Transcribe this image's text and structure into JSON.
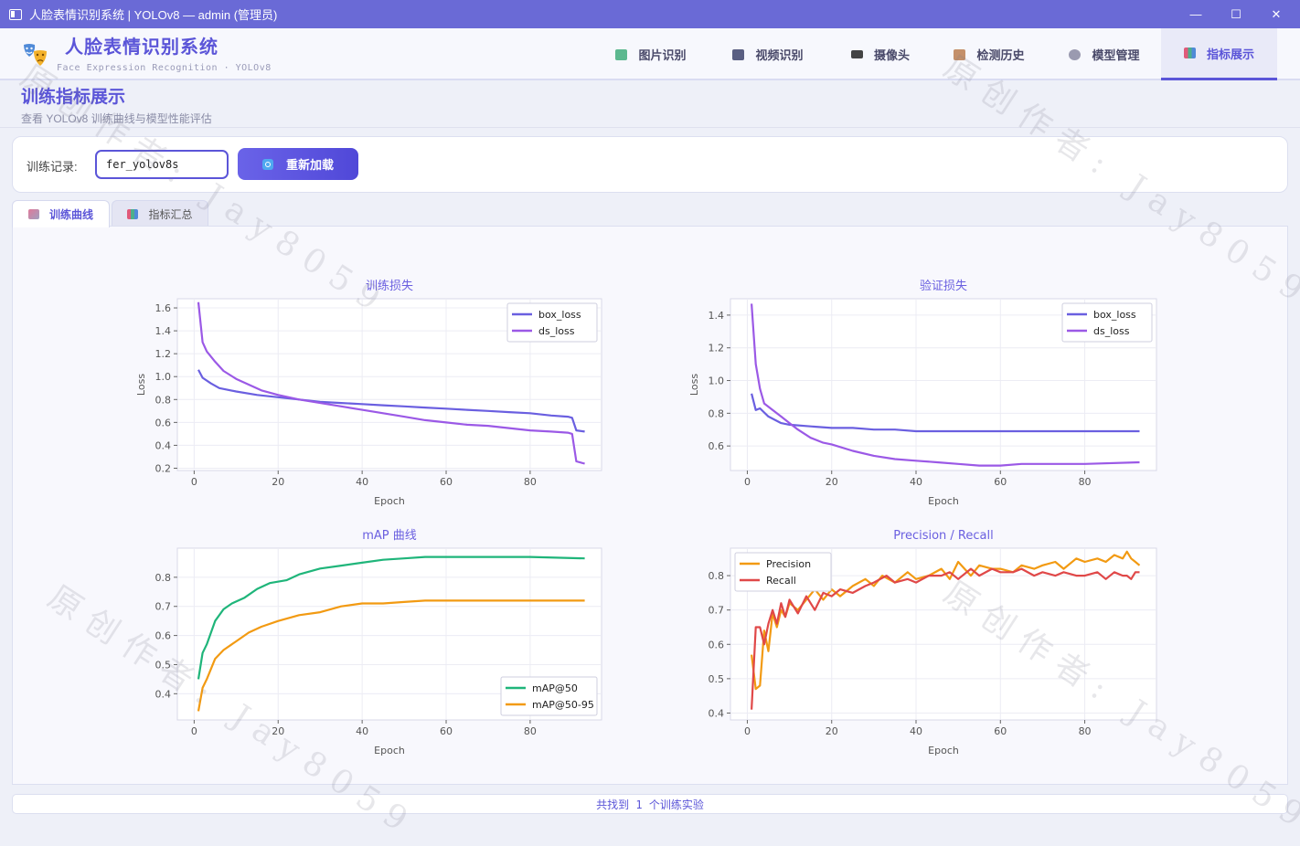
{
  "window": {
    "title": "人脸表情识别系统 | YOLOv8 — admin (管理员)",
    "minimize": "—",
    "maximize": "☐",
    "close": "✕"
  },
  "header": {
    "app_name": "人脸表情识别系统",
    "app_subtitle": "Face Expression Recognition · YOLOv8",
    "nav": [
      {
        "label": "图片识别",
        "icon": "image-icon",
        "color": "#4caf8c"
      },
      {
        "label": "视频识别",
        "icon": "film-icon",
        "color": "#555a7a"
      },
      {
        "label": "摄像头",
        "icon": "camera-icon",
        "color": "#444"
      },
      {
        "label": "检测历史",
        "icon": "history-scroll-icon",
        "color": "#b07a5a"
      },
      {
        "label": "模型管理",
        "icon": "gear-icon",
        "color": "#8a8aa0"
      },
      {
        "label": "指标展示",
        "icon": "bar-chart-icon",
        "color": "#d05a7a"
      }
    ],
    "active_nav": "指标展示"
  },
  "page": {
    "title": "训练指标展示",
    "subtitle": "查看 YOLOv8 训练曲线与模型性能评估"
  },
  "record": {
    "label": "训练记录:",
    "value": "fer_yolov8s",
    "reload_label": "重新加载"
  },
  "tabs": [
    {
      "label": "训练曲线",
      "active": true
    },
    {
      "label": "指标汇总",
      "active": false
    }
  ],
  "status": "共找到 1 个训练实验",
  "watermark": "原创作者: Jay8059",
  "chart_data": [
    {
      "type": "line",
      "title": "训练损失",
      "xlabel": "Epoch",
      "ylabel": "Loss",
      "xlim": [
        -4,
        97
      ],
      "ylim": [
        0.18,
        1.68
      ],
      "xticks": [
        0,
        20,
        40,
        60,
        80
      ],
      "yticks": [
        0.2,
        0.4,
        0.6,
        0.8,
        1.0,
        1.2,
        1.4,
        1.6
      ],
      "legend": "top-right",
      "series": [
        {
          "name": "box_loss",
          "color": "#6a5fe0",
          "points": [
            [
              1,
              1.06
            ],
            [
              2,
              0.99
            ],
            [
              4,
              0.94
            ],
            [
              6,
              0.9
            ],
            [
              10,
              0.87
            ],
            [
              15,
              0.84
            ],
            [
              20,
              0.82
            ],
            [
              25,
              0.8
            ],
            [
              30,
              0.78
            ],
            [
              35,
              0.77
            ],
            [
              40,
              0.76
            ],
            [
              45,
              0.75
            ],
            [
              50,
              0.74
            ],
            [
              55,
              0.73
            ],
            [
              60,
              0.72
            ],
            [
              65,
              0.71
            ],
            [
              70,
              0.7
            ],
            [
              75,
              0.69
            ],
            [
              80,
              0.68
            ],
            [
              85,
              0.66
            ],
            [
              89,
              0.65
            ],
            [
              90,
              0.64
            ],
            [
              91,
              0.53
            ],
            [
              93,
              0.52
            ]
          ]
        },
        {
          "name": "ds_loss",
          "color": "#9b59e6",
          "points": [
            [
              1,
              1.65
            ],
            [
              2,
              1.3
            ],
            [
              3,
              1.22
            ],
            [
              5,
              1.13
            ],
            [
              7,
              1.05
            ],
            [
              10,
              0.98
            ],
            [
              13,
              0.93
            ],
            [
              16,
              0.88
            ],
            [
              20,
              0.84
            ],
            [
              25,
              0.8
            ],
            [
              30,
              0.77
            ],
            [
              35,
              0.74
            ],
            [
              40,
              0.71
            ],
            [
              45,
              0.68
            ],
            [
              50,
              0.65
            ],
            [
              55,
              0.62
            ],
            [
              60,
              0.6
            ],
            [
              65,
              0.58
            ],
            [
              70,
              0.57
            ],
            [
              75,
              0.55
            ],
            [
              80,
              0.53
            ],
            [
              85,
              0.52
            ],
            [
              89,
              0.51
            ],
            [
              90,
              0.5
            ],
            [
              91,
              0.26
            ],
            [
              93,
              0.24
            ]
          ]
        }
      ]
    },
    {
      "type": "line",
      "title": "验证损失",
      "xlabel": "Epoch",
      "ylabel": "Loss",
      "xlim": [
        -4,
        97
      ],
      "ylim": [
        0.45,
        1.5
      ],
      "xticks": [
        0,
        20,
        40,
        60,
        80
      ],
      "yticks": [
        0.6,
        0.8,
        1.0,
        1.2,
        1.4
      ],
      "legend": "top-right",
      "series": [
        {
          "name": "box_loss",
          "color": "#6a5fe0",
          "points": [
            [
              1,
              0.92
            ],
            [
              2,
              0.82
            ],
            [
              3,
              0.83
            ],
            [
              5,
              0.78
            ],
            [
              8,
              0.74
            ],
            [
              10,
              0.73
            ],
            [
              15,
              0.72
            ],
            [
              20,
              0.71
            ],
            [
              25,
              0.71
            ],
            [
              30,
              0.7
            ],
            [
              35,
              0.7
            ],
            [
              40,
              0.69
            ],
            [
              50,
              0.69
            ],
            [
              60,
              0.69
            ],
            [
              70,
              0.69
            ],
            [
              80,
              0.69
            ],
            [
              93,
              0.69
            ]
          ]
        },
        {
          "name": "ds_loss",
          "color": "#9b59e6",
          "points": [
            [
              1,
              1.47
            ],
            [
              2,
              1.1
            ],
            [
              3,
              0.95
            ],
            [
              4,
              0.86
            ],
            [
              6,
              0.82
            ],
            [
              8,
              0.78
            ],
            [
              10,
              0.74
            ],
            [
              12,
              0.7
            ],
            [
              15,
              0.65
            ],
            [
              18,
              0.62
            ],
            [
              20,
              0.61
            ],
            [
              25,
              0.57
            ],
            [
              30,
              0.54
            ],
            [
              35,
              0.52
            ],
            [
              40,
              0.51
            ],
            [
              45,
              0.5
            ],
            [
              50,
              0.49
            ],
            [
              55,
              0.48
            ],
            [
              60,
              0.48
            ],
            [
              65,
              0.49
            ],
            [
              70,
              0.49
            ],
            [
              80,
              0.49
            ],
            [
              93,
              0.5
            ]
          ]
        }
      ]
    },
    {
      "type": "line",
      "title": "mAP 曲线",
      "xlabel": "Epoch",
      "ylabel": "",
      "xlim": [
        -4,
        97
      ],
      "ylim": [
        0.31,
        0.9
      ],
      "xticks": [
        0,
        20,
        40,
        60,
        80
      ],
      "yticks": [
        0.4,
        0.5,
        0.6,
        0.7,
        0.8
      ],
      "legend": "bottom-right",
      "series": [
        {
          "name": "mAP@50",
          "color": "#1fb57a",
          "points": [
            [
              1,
              0.45
            ],
            [
              2,
              0.54
            ],
            [
              3,
              0.57
            ],
            [
              5,
              0.65
            ],
            [
              7,
              0.69
            ],
            [
              9,
              0.71
            ],
            [
              12,
              0.73
            ],
            [
              15,
              0.76
            ],
            [
              18,
              0.78
            ],
            [
              22,
              0.79
            ],
            [
              25,
              0.81
            ],
            [
              30,
              0.83
            ],
            [
              35,
              0.84
            ],
            [
              40,
              0.85
            ],
            [
              45,
              0.86
            ],
            [
              50,
              0.865
            ],
            [
              55,
              0.87
            ],
            [
              60,
              0.87
            ],
            [
              70,
              0.87
            ],
            [
              80,
              0.87
            ],
            [
              93,
              0.865
            ]
          ]
        },
        {
          "name": "mAP@50-95",
          "color": "#f29a12",
          "points": [
            [
              1,
              0.34
            ],
            [
              2,
              0.42
            ],
            [
              3,
              0.45
            ],
            [
              5,
              0.52
            ],
            [
              7,
              0.55
            ],
            [
              10,
              0.58
            ],
            [
              13,
              0.61
            ],
            [
              16,
              0.63
            ],
            [
              20,
              0.65
            ],
            [
              25,
              0.67
            ],
            [
              30,
              0.68
            ],
            [
              35,
              0.7
            ],
            [
              40,
              0.71
            ],
            [
              45,
              0.71
            ],
            [
              50,
              0.715
            ],
            [
              55,
              0.72
            ],
            [
              60,
              0.72
            ],
            [
              70,
              0.72
            ],
            [
              80,
              0.72
            ],
            [
              93,
              0.72
            ]
          ]
        }
      ]
    },
    {
      "type": "line",
      "title": "Precision / Recall",
      "xlabel": "Epoch",
      "ylabel": "",
      "xlim": [
        -4,
        97
      ],
      "ylim": [
        0.38,
        0.88
      ],
      "xticks": [
        0,
        20,
        40,
        60,
        80
      ],
      "yticks": [
        0.4,
        0.5,
        0.6,
        0.7,
        0.8
      ],
      "legend": "top-left",
      "series": [
        {
          "name": "Precision",
          "color": "#f29a12",
          "points": [
            [
              1,
              0.57
            ],
            [
              2,
              0.47
            ],
            [
              3,
              0.48
            ],
            [
              4,
              0.64
            ],
            [
              5,
              0.58
            ],
            [
              6,
              0.69
            ],
            [
              7,
              0.65
            ],
            [
              8,
              0.7
            ],
            [
              9,
              0.68
            ],
            [
              10,
              0.72
            ],
            [
              12,
              0.7
            ],
            [
              14,
              0.73
            ],
            [
              16,
              0.76
            ],
            [
              18,
              0.73
            ],
            [
              20,
              0.76
            ],
            [
              22,
              0.74
            ],
            [
              25,
              0.77
            ],
            [
              28,
              0.79
            ],
            [
              30,
              0.77
            ],
            [
              32,
              0.8
            ],
            [
              35,
              0.78
            ],
            [
              38,
              0.81
            ],
            [
              40,
              0.79
            ],
            [
              43,
              0.8
            ],
            [
              46,
              0.82
            ],
            [
              48,
              0.79
            ],
            [
              50,
              0.84
            ],
            [
              53,
              0.8
            ],
            [
              55,
              0.83
            ],
            [
              58,
              0.82
            ],
            [
              60,
              0.82
            ],
            [
              63,
              0.81
            ],
            [
              65,
              0.83
            ],
            [
              68,
              0.82
            ],
            [
              70,
              0.83
            ],
            [
              73,
              0.84
            ],
            [
              75,
              0.82
            ],
            [
              78,
              0.85
            ],
            [
              80,
              0.84
            ],
            [
              83,
              0.85
            ],
            [
              85,
              0.84
            ],
            [
              87,
              0.86
            ],
            [
              89,
              0.85
            ],
            [
              90,
              0.87
            ],
            [
              91,
              0.85
            ],
            [
              92,
              0.84
            ],
            [
              93,
              0.83
            ]
          ]
        },
        {
          "name": "Recall",
          "color": "#e04848",
          "points": [
            [
              1,
              0.41
            ],
            [
              2,
              0.65
            ],
            [
              3,
              0.65
            ],
            [
              4,
              0.6
            ],
            [
              5,
              0.66
            ],
            [
              6,
              0.7
            ],
            [
              7,
              0.66
            ],
            [
              8,
              0.72
            ],
            [
              9,
              0.68
            ],
            [
              10,
              0.73
            ],
            [
              12,
              0.69
            ],
            [
              14,
              0.74
            ],
            [
              16,
              0.7
            ],
            [
              18,
              0.75
            ],
            [
              20,
              0.74
            ],
            [
              22,
              0.76
            ],
            [
              25,
              0.75
            ],
            [
              28,
              0.77
            ],
            [
              30,
              0.78
            ],
            [
              33,
              0.8
            ],
            [
              35,
              0.78
            ],
            [
              38,
              0.79
            ],
            [
              40,
              0.78
            ],
            [
              43,
              0.8
            ],
            [
              46,
              0.8
            ],
            [
              48,
              0.81
            ],
            [
              50,
              0.79
            ],
            [
              53,
              0.82
            ],
            [
              55,
              0.8
            ],
            [
              58,
              0.82
            ],
            [
              60,
              0.81
            ],
            [
              63,
              0.81
            ],
            [
              65,
              0.82
            ],
            [
              68,
              0.8
            ],
            [
              70,
              0.81
            ],
            [
              73,
              0.8
            ],
            [
              75,
              0.81
            ],
            [
              78,
              0.8
            ],
            [
              80,
              0.8
            ],
            [
              83,
              0.81
            ],
            [
              85,
              0.79
            ],
            [
              87,
              0.81
            ],
            [
              89,
              0.8
            ],
            [
              90,
              0.8
            ],
            [
              91,
              0.79
            ],
            [
              92,
              0.81
            ],
            [
              93,
              0.81
            ]
          ]
        }
      ]
    }
  ]
}
